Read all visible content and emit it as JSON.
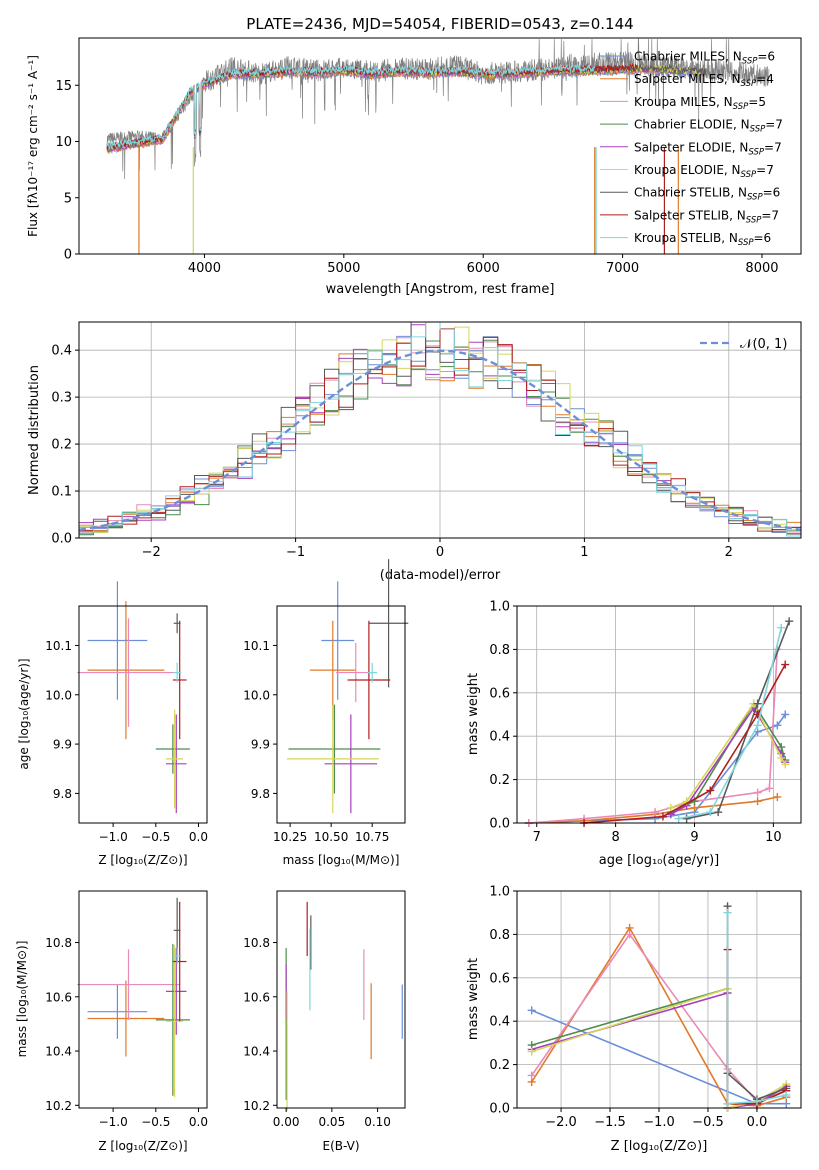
{
  "colors": [
    "#6b8fd9",
    "#e07a28",
    "#e88bb8",
    "#4d8c4d",
    "#a83fbf",
    "#d6d65a",
    "#5a5a5a",
    "#b01f1f",
    "#7fd6dd"
  ],
  "chart_data": [
    {
      "id": "spectrum",
      "type": "line",
      "title": "PLATE=2436, MJD=54054, FIBERID=0543, z=0.144",
      "xlabel": "wavelength [Angstrom, rest frame]",
      "ylabel": "Flux [fλ10⁻¹⁷ erg cm⁻² s⁻¹ A⁻¹]",
      "xlim": [
        3100,
        8280
      ],
      "ylim": [
        0,
        19.2
      ],
      "xticks": [
        4000,
        5000,
        6000,
        7000,
        8000
      ],
      "yticks": [
        0,
        5,
        10,
        15
      ],
      "observed": {
        "x": [
          3300,
          3500,
          3700,
          3900,
          4000,
          4200,
          4400,
          4600,
          4800,
          5000,
          5200,
          5400,
          5600,
          5800,
          6000,
          6200,
          6400,
          6600,
          6800,
          7000,
          7200,
          7400,
          7600,
          7800,
          8000,
          8050
        ],
        "y": [
          10.2,
          10.4,
          10.3,
          14.0,
          15.2,
          16.6,
          16.0,
          16.6,
          16.3,
          16.5,
          16.2,
          16.5,
          16.4,
          16.8,
          16.0,
          16.2,
          16.4,
          16.6,
          16.9,
          17.1,
          16.7,
          16.6,
          16.3,
          16.2,
          15.8,
          15.8
        ]
      },
      "model": {
        "x": [
          3300,
          3500,
          3700,
          3900,
          4000,
          4200,
          4400,
          4600,
          4800,
          5000,
          5200,
          5400,
          5600,
          5800,
          6000,
          6200,
          6400,
          6600,
          6800,
          7000,
          7200,
          7400,
          7600
        ],
        "y": [
          9.4,
          9.8,
          10.2,
          14.4,
          15.1,
          16.0,
          16.0,
          16.2,
          16.1,
          16.3,
          16.0,
          16.2,
          16.1,
          16.2,
          16.0,
          16.0,
          16.2,
          16.3,
          16.3,
          16.4,
          16.5,
          16.3,
          16.1
        ]
      },
      "legend": [
        {
          "label": "Chabrier MILES, N",
          "sub": "SSP",
          "tail": "=6"
        },
        {
          "label": "Salpeter MILES, N",
          "sub": "SSP",
          "tail": "=4"
        },
        {
          "label": "Kroupa MILES, N",
          "sub": "SSP",
          "tail": "=5"
        },
        {
          "label": "Chabrier ELODIE, N",
          "sub": "SSP",
          "tail": "=7"
        },
        {
          "label": "Salpeter ELODIE, N",
          "sub": "SSP",
          "tail": "=7"
        },
        {
          "label": "Kroupa ELODIE, N",
          "sub": "SSP",
          "tail": "=7"
        },
        {
          "label": "Chabrier STELIB, N",
          "sub": "SSP",
          "tail": "=6"
        },
        {
          "label": "Salpeter STELIB, N",
          "sub": "SSP",
          "tail": "=7"
        },
        {
          "label": "Kroupa STELIB, N",
          "sub": "SSP",
          "tail": "=6"
        }
      ],
      "legend_placement": "top-right"
    },
    {
      "id": "residuals",
      "type": "line",
      "xlabel": "(data-model)/error",
      "ylabel": "Normed distribution",
      "xlim": [
        -2.5,
        2.5
      ],
      "ylim": [
        0,
        0.46
      ],
      "xticks": [
        -2,
        -1,
        0,
        1,
        2
      ],
      "xticklabels": [
        "−2",
        "−1",
        "0",
        "1",
        "2"
      ],
      "yticks": [
        0.0,
        0.1,
        0.2,
        0.3,
        0.4
      ],
      "yticklabels": [
        "0.0",
        "0.1",
        "0.2",
        "0.3",
        "0.4"
      ],
      "grid": true,
      "bin_width": 0.1,
      "gaussian": {
        "mean": 0,
        "sigma": 1,
        "label": "𝒩(0, 1)"
      },
      "legend_placement": "top-right"
    },
    {
      "id": "age-vs-Z",
      "type": "scatter",
      "xlabel": "Z [log₁₀(Z/Z⊙)]",
      "ylabel": "age  [log₁₀(age/yr)]",
      "xlim": [
        -1.4,
        0.1
      ],
      "ylim": [
        9.74,
        10.18
      ],
      "xticks": [
        -1.0,
        -0.5,
        0.0
      ],
      "xticklabels": [
        "−1.0",
        "−0.5",
        "0.0"
      ],
      "yticks": [
        9.8,
        9.9,
        10.0,
        10.1
      ],
      "yticklabels": [
        "9.8",
        "9.9",
        "10.0",
        "10.1"
      ],
      "points": [
        {
          "x": -0.95,
          "y": 10.11,
          "xerr": 0.35,
          "yerr": 0.12
        },
        {
          "x": -0.85,
          "y": 10.05,
          "xerr": 0.45,
          "yerr": 0.14
        },
        {
          "x": -0.82,
          "y": 10.045,
          "xerr": 0.6,
          "yerr": 0.11
        },
        {
          "x": -0.3,
          "y": 9.89,
          "xerr": 0.2,
          "yerr": 0.05
        },
        {
          "x": -0.26,
          "y": 9.86,
          "xerr": 0.12,
          "yerr": 0.1
        },
        {
          "x": -0.28,
          "y": 9.87,
          "xerr": 0.1,
          "yerr": 0.1
        },
        {
          "x": -0.25,
          "y": 10.145,
          "xerr": 0.04,
          "yerr": 0.02
        },
        {
          "x": -0.22,
          "y": 10.03,
          "xerr": 0.08,
          "yerr": 0.12
        },
        {
          "x": -0.25,
          "y": 10.045,
          "xerr": 0.05,
          "yerr": 0.02
        }
      ]
    },
    {
      "id": "age-vs-mass",
      "type": "scatter",
      "xlabel": "mass [log₁₀(M/M⊙)]",
      "ylabel": "",
      "xlim": [
        10.17,
        10.95
      ],
      "ylim": [
        9.74,
        10.18
      ],
      "xticks": [
        10.25,
        10.5,
        10.75
      ],
      "xticklabels": [
        "10.25",
        "10.50",
        "10.75"
      ],
      "yticks": [
        9.8,
        9.9,
        10.0,
        10.1
      ],
      "yticklabels": [
        "9.8",
        "9.9",
        "10.0",
        "10.1"
      ],
      "points": [
        {
          "x": 10.54,
          "y": 10.11,
          "xerr": 0.1,
          "yerr": 0.12
        },
        {
          "x": 10.51,
          "y": 10.05,
          "xerr": 0.14,
          "yerr": 0.1
        },
        {
          "x": 10.65,
          "y": 10.045,
          "xerr": 0.12,
          "yerr": 0.06
        },
        {
          "x": 10.52,
          "y": 9.89,
          "xerr": 0.28,
          "yerr": 0.09
        },
        {
          "x": 10.62,
          "y": 9.86,
          "xerr": 0.16,
          "yerr": 0.1
        },
        {
          "x": 10.51,
          "y": 9.87,
          "xerr": 0.28,
          "yerr": 0.11
        },
        {
          "x": 10.85,
          "y": 10.145,
          "xerr": 0.12,
          "yerr": 0.13
        },
        {
          "x": 10.73,
          "y": 10.03,
          "xerr": 0.13,
          "yerr": 0.12
        },
        {
          "x": 10.75,
          "y": 10.045,
          "xerr": 0.03,
          "yerr": 0.02
        }
      ]
    },
    {
      "id": "mass-weight-vs-age",
      "type": "line",
      "xlabel": "age  [log₁₀(age/yr)]",
      "ylabel": "mass weight",
      "xlim": [
        6.75,
        10.35
      ],
      "ylim": [
        0,
        1.0
      ],
      "xticks": [
        7,
        8,
        9,
        10
      ],
      "xticklabels": [
        "7",
        "8",
        "9",
        "10"
      ],
      "yticks": [
        0.0,
        0.2,
        0.4,
        0.6,
        0.8,
        1.0
      ],
      "yticklabels": [
        "0.0",
        "0.2",
        "0.4",
        "0.6",
        "0.8",
        "1.0"
      ],
      "grid": true,
      "series": [
        {
          "x": [
            6.9,
            7.6,
            8.5,
            9.0,
            9.8,
            10.05,
            10.15
          ],
          "y": [
            0.0,
            0.01,
            0.02,
            0.05,
            0.42,
            0.45,
            0.5
          ]
        },
        {
          "x": [
            6.9,
            7.6,
            8.5,
            9.0,
            9.8,
            10.05
          ],
          "y": [
            0.0,
            0.01,
            0.04,
            0.07,
            0.1,
            0.12
          ]
        },
        {
          "x": [
            6.9,
            7.6,
            8.5,
            9.0,
            9.8,
            9.95,
            10.05
          ],
          "y": [
            0.0,
            0.02,
            0.05,
            0.1,
            0.14,
            0.16,
            0.8
          ]
        },
        {
          "x": [
            8.7,
            9.0,
            9.75,
            10.1,
            10.15
          ],
          "y": [
            0.05,
            0.1,
            0.55,
            0.35,
            0.29
          ]
        },
        {
          "x": [
            8.7,
            8.9,
            9.75,
            10.1,
            10.15
          ],
          "y": [
            0.04,
            0.08,
            0.53,
            0.32,
            0.28
          ]
        },
        {
          "x": [
            8.7,
            8.9,
            9.75,
            10.1,
            10.15
          ],
          "y": [
            0.07,
            0.1,
            0.55,
            0.3,
            0.27
          ]
        },
        {
          "x": [
            8.9,
            9.3,
            9.8,
            10.2
          ],
          "y": [
            0.02,
            0.05,
            0.55,
            0.93
          ]
        },
        {
          "x": [
            7.6,
            8.6,
            9.2,
            9.8,
            10.15
          ],
          "y": [
            0.0,
            0.03,
            0.15,
            0.5,
            0.73
          ]
        },
        {
          "x": [
            8.8,
            9.2,
            9.8,
            10.1
          ],
          "y": [
            0.02,
            0.05,
            0.45,
            0.9
          ]
        }
      ]
    },
    {
      "id": "mass-vs-Z",
      "type": "scatter",
      "xlabel": "Z [log₁₀(Z/Z⊙)]",
      "ylabel": "mass [log₁₀(M/M⊙)]",
      "xlim": [
        -1.4,
        0.1
      ],
      "ylim": [
        10.19,
        10.99
      ],
      "xticks": [
        -1.0,
        -0.5,
        0.0
      ],
      "xticklabels": [
        "−1.0",
        "−0.5",
        "0.0"
      ],
      "yticks": [
        10.2,
        10.4,
        10.6,
        10.8
      ],
      "yticklabels": [
        "10.2",
        "10.4",
        "10.6",
        "10.8"
      ],
      "points": [
        {
          "x": -0.95,
          "y": 10.545,
          "xerr": 0.35,
          "yerr": 0.1
        },
        {
          "x": -0.85,
          "y": 10.52,
          "xerr": 0.45,
          "yerr": 0.14
        },
        {
          "x": -0.82,
          "y": 10.645,
          "xerr": 0.6,
          "yerr": 0.13
        },
        {
          "x": -0.3,
          "y": 10.515,
          "xerr": 0.2,
          "yerr": 0.28
        },
        {
          "x": -0.26,
          "y": 10.62,
          "xerr": 0.12,
          "yerr": 0.16
        },
        {
          "x": -0.28,
          "y": 10.51,
          "xerr": 0.1,
          "yerr": 0.28
        },
        {
          "x": -0.25,
          "y": 10.845,
          "xerr": 0.04,
          "yerr": 0.12
        },
        {
          "x": -0.22,
          "y": 10.73,
          "xerr": 0.08,
          "yerr": 0.22
        },
        {
          "x": -0.25,
          "y": 10.75,
          "xerr": 0.05,
          "yerr": 0.03
        }
      ]
    },
    {
      "id": "mass-vs-EBV",
      "type": "scatter",
      "xlabel": "E(B-V)",
      "ylabel": "",
      "xlim": [
        -0.01,
        0.13
      ],
      "ylim": [
        10.19,
        10.99
      ],
      "xticks": [
        0.0,
        0.05,
        0.1
      ],
      "xticklabels": [
        "0.00",
        "0.05",
        "0.10"
      ],
      "yticks": [
        10.2,
        10.4,
        10.6,
        10.8
      ],
      "yticklabels": [
        "10.2",
        "10.4",
        "10.6",
        "10.8"
      ],
      "points": [
        {
          "x": 0.127,
          "y": 10.545,
          "yerr": 0.1
        },
        {
          "x": 0.093,
          "y": 10.51,
          "yerr": 0.14
        },
        {
          "x": 0.085,
          "y": 10.645,
          "yerr": 0.13
        },
        {
          "x": 0.0,
          "y": 10.5,
          "yerr": 0.28
        },
        {
          "x": 0.0,
          "y": 10.62,
          "yerr": 0.1
        },
        {
          "x": 0.001,
          "y": 10.4,
          "yerr": 0.22
        },
        {
          "x": 0.027,
          "y": 10.8,
          "yerr": 0.1
        },
        {
          "x": 0.023,
          "y": 10.85,
          "yerr": 0.1
        },
        {
          "x": 0.026,
          "y": 10.7,
          "yerr": 0.15
        }
      ]
    },
    {
      "id": "mass-weight-vs-Z",
      "type": "line",
      "xlabel": "Z [log₁₀(Z/Z⊙)]",
      "ylabel": "mass weight",
      "xlim": [
        -2.45,
        0.45
      ],
      "ylim": [
        0,
        1.0
      ],
      "xticks": [
        -2.0,
        -1.5,
        -1.0,
        -0.5,
        0.0
      ],
      "xticklabels": [
        "−2.0",
        "−1.5",
        "−1.0",
        "−0.5",
        "0.0"
      ],
      "yticks": [
        0.0,
        0.2,
        0.4,
        0.6,
        0.8,
        1.0
      ],
      "yticklabels": [
        "0.0",
        "0.2",
        "0.4",
        "0.6",
        "0.8",
        "1.0"
      ],
      "grid": true,
      "series": [
        {
          "x": [
            -2.3,
            0.0,
            0.3
          ],
          "y": [
            0.45,
            0.02,
            0.02
          ]
        },
        {
          "x": [
            -2.3,
            -1.3,
            -0.3,
            0.0,
            0.3
          ],
          "y": [
            0.12,
            0.83,
            0.02,
            0.01,
            0.05
          ]
        },
        {
          "x": [
            -2.3,
            -1.3,
            -0.3,
            0.0,
            0.3
          ],
          "y": [
            0.15,
            0.8,
            0.18,
            0.03,
            0.08
          ]
        },
        {
          "x": [
            -2.3,
            -0.3,
            -0.3,
            0.0,
            0.3
          ],
          "y": [
            0.29,
            0.55,
            0.0,
            0.02,
            0.1
          ]
        },
        {
          "x": [
            -2.3,
            -0.3,
            -0.3,
            0.0,
            0.3
          ],
          "y": [
            0.27,
            0.53,
            0.0,
            0.02,
            0.1
          ]
        },
        {
          "x": [
            -2.3,
            -0.3,
            -0.3,
            0.0,
            0.3
          ],
          "y": [
            0.26,
            0.55,
            0.0,
            0.03,
            0.11
          ]
        },
        {
          "x": [
            -0.3,
            -0.3,
            0.0,
            0.3
          ],
          "y": [
            0.93,
            0.16,
            0.04,
            0.09
          ]
        },
        {
          "x": [
            -0.3,
            -0.3,
            0.0,
            0.3
          ],
          "y": [
            0.73,
            0.02,
            0.02,
            0.08
          ]
        },
        {
          "x": [
            -0.3,
            -0.3,
            0.0,
            0.3
          ],
          "y": [
            0.9,
            0.02,
            0.03,
            0.06
          ]
        }
      ]
    }
  ]
}
